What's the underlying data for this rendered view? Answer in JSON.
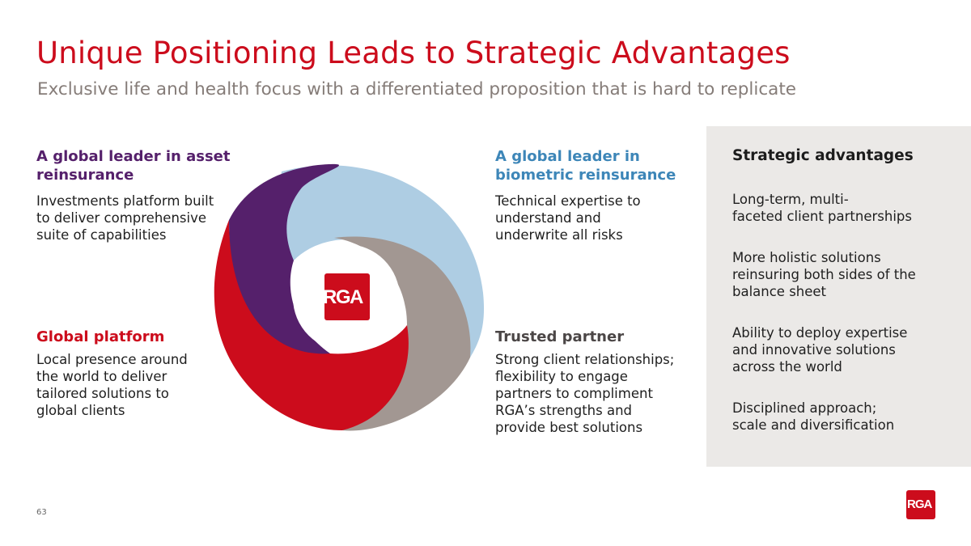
{
  "slide": {
    "title": "Unique Positioning Leads to Strategic Advantages",
    "subtitle": "Exclusive life and health focus with a differentiated proposition that is hard to replicate",
    "page_number": "63"
  },
  "quadrants": {
    "asset": {
      "heading_line1": "A global leader in asset",
      "heading_line2": "reinsurance",
      "body": [
        "Investments platform built",
        "to deliver comprehensive",
        "suite of capabilities"
      ],
      "color": "#55206b"
    },
    "biometric": {
      "heading_line1": "A global leader in",
      "heading_line2": "biometric reinsurance",
      "body": [
        "Technical expertise to",
        "understand and",
        "underwrite all risks"
      ],
      "color": "#3d86b8"
    },
    "platform": {
      "heading": "Global platform",
      "body": [
        "Local presence around",
        "the world to deliver",
        "tailored solutions to",
        "global clients"
      ],
      "color": "#cc0c1c"
    },
    "partner": {
      "heading": "Trusted partner",
      "body": [
        "Strong client relationships;",
        "flexibility to engage",
        "partners to compliment",
        "RGA’s strengths and",
        "provide best solutions"
      ],
      "color": "#4b4646"
    }
  },
  "advantages": {
    "heading": "Strategic advantages",
    "items": [
      [
        "Long-term, multi-",
        "faceted client partnerships"
      ],
      [
        "More holistic solutions",
        "reinsuring both sides of the",
        "balance sheet"
      ],
      [
        "Ability to deploy expertise",
        "and innovative solutions",
        "across the world"
      ],
      [
        "Disciplined approach;",
        "scale and diversification"
      ]
    ]
  },
  "logo": {
    "text": "RGA",
    "color": "#cc0c1c"
  },
  "swirl_colors": {
    "purple": "#55206b",
    "light_blue": "#aecde3",
    "taupe": "#a29792",
    "red": "#cc0c1c"
  }
}
